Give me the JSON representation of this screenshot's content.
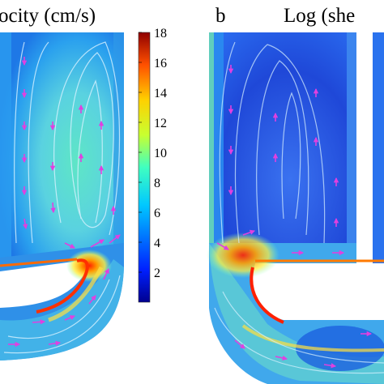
{
  "chart_data": [
    {
      "type": "heatmap",
      "panel_label": "",
      "title": "ocity (cm/s)",
      "colorbar": {
        "min": 0,
        "max": 18,
        "ticks": [
          18,
          16,
          14,
          12,
          10,
          8,
          6,
          4,
          2
        ],
        "colormap": "jet"
      }
    },
    {
      "type": "heatmap",
      "panel_label": "b",
      "title": "Log (she",
      "colorbar": null
    }
  ],
  "colors": {
    "background_dark_blue": "#0a2aa8",
    "streamline": "#d9f2ff",
    "arrow": "#e040e0",
    "high_velocity": "#e01010"
  }
}
